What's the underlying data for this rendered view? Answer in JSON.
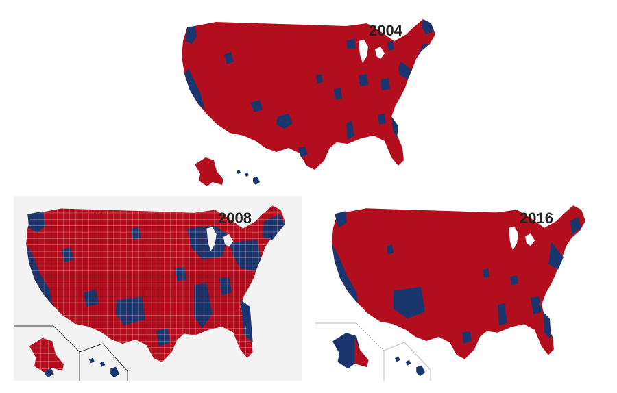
{
  "maps": [
    {
      "year": "2004"
    },
    {
      "year": "2008"
    },
    {
      "year": "2016"
    }
  ],
  "colors": {
    "republican": "#b30e1e",
    "democrat": "#19376e",
    "inset_line": "#333333",
    "county_border": "#e5a5aa"
  },
  "icons": {
    "us-map": "county-level-election-map"
  }
}
